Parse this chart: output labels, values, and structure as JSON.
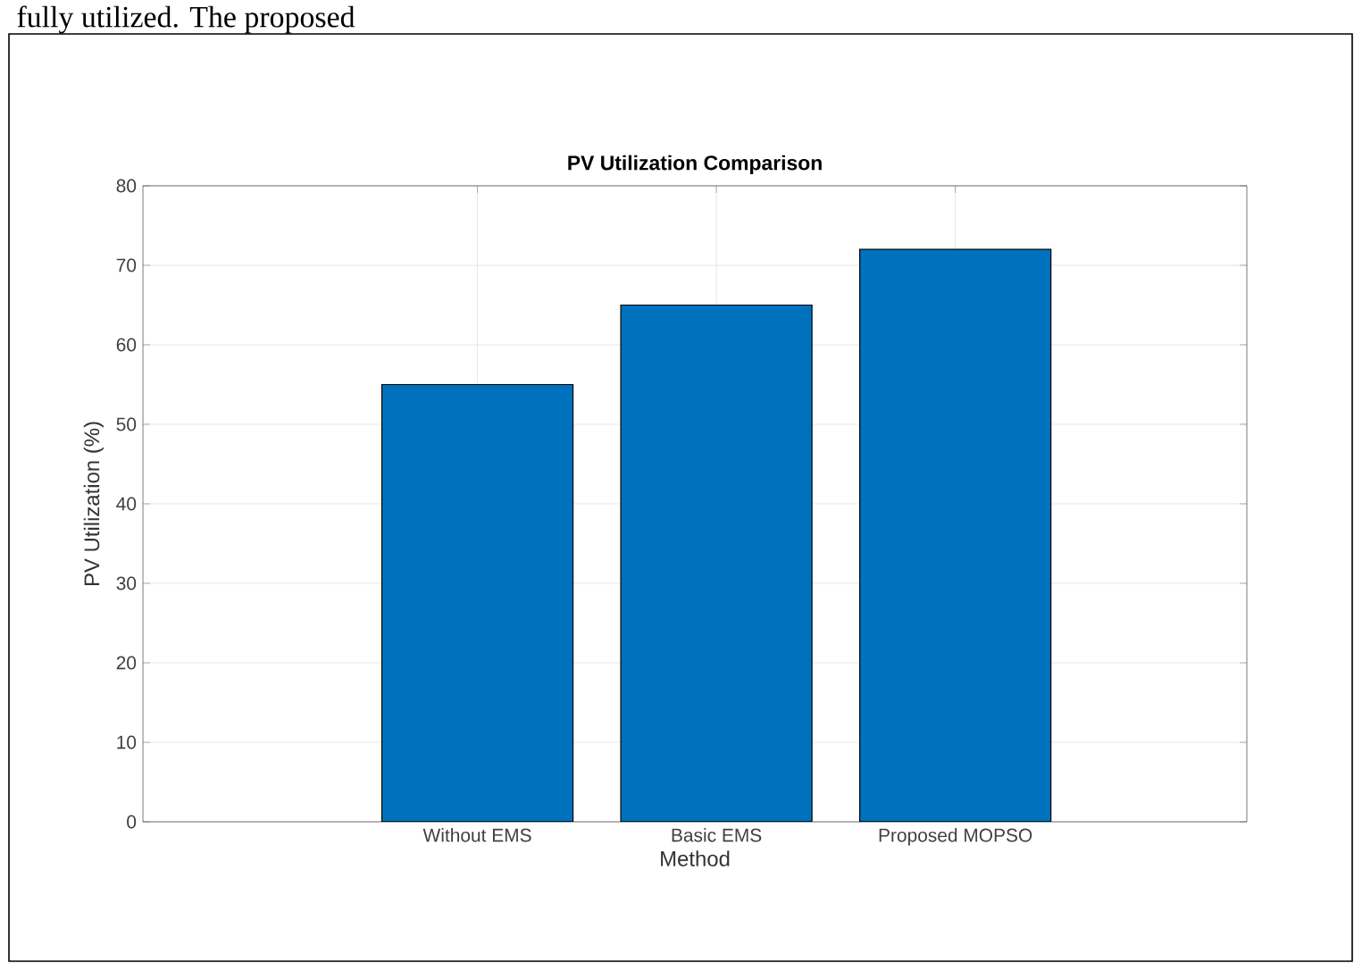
{
  "chart_data": {
    "type": "bar",
    "title": "PV Utilization Comparison",
    "xlabel": "Method",
    "ylabel": "PV Utilization (%)",
    "annotations": [
      "fully utilized. The proposed"
    ],
    "categories": [
      "Without EMS",
      "Basic EMS",
      "Proposed MOPSO"
    ],
    "values": [
      55,
      65,
      72
    ],
    "color": "#0072bd",
    "ylim": [
      0,
      80
    ],
    "yticks": [
      0,
      10,
      20,
      30,
      40,
      50,
      60,
      70,
      80
    ],
    "grid": true
  }
}
